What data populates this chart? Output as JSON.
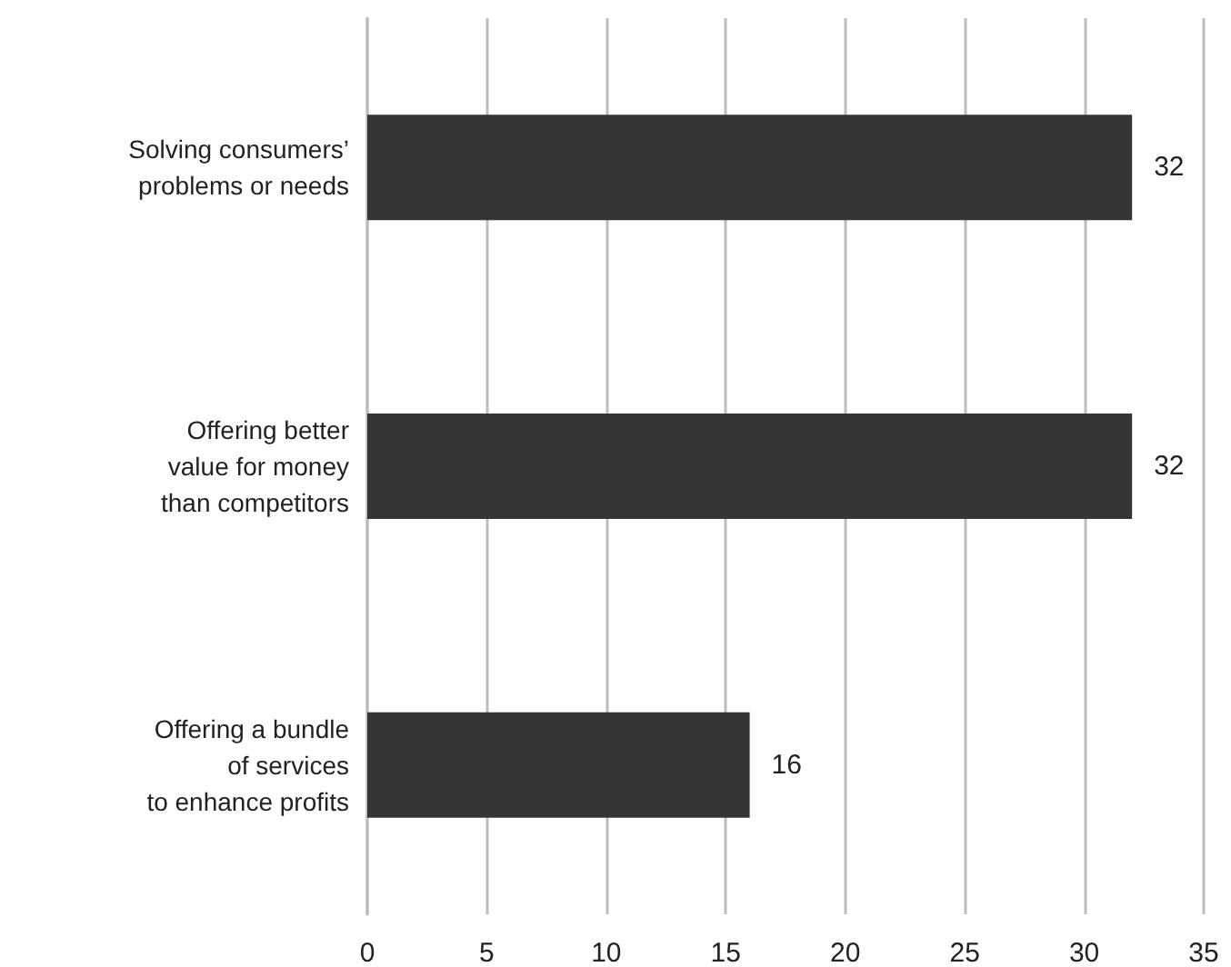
{
  "chart_data": {
    "type": "bar",
    "orientation": "horizontal",
    "categories": [
      "Solving consumers’\nproblems or needs",
      "Offering better\nvalue for money\nthan competitors",
      "Offering a bundle\nof services\nto enhance profits"
    ],
    "values": [
      32,
      32,
      16
    ],
    "color": "#353535",
    "xlim": [
      0,
      35
    ],
    "xticks": [
      0,
      5,
      10,
      15,
      20,
      25,
      30,
      35
    ],
    "grid": "x",
    "data_labels": true
  }
}
